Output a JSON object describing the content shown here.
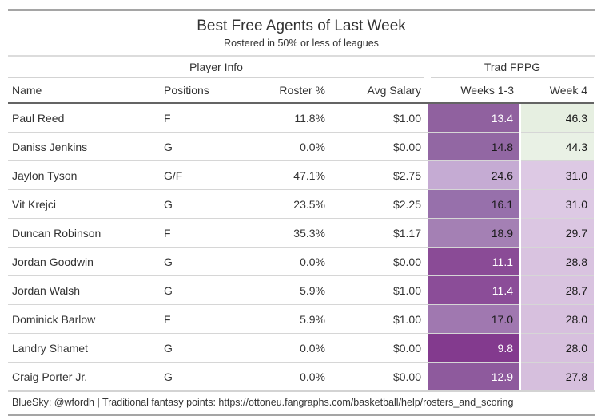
{
  "table": {
    "title": "Best Free Agents of Last Week",
    "subtitle": "Rostered in 50% or less of leagues",
    "spanners": {
      "player_info": "Player Info",
      "trad_fppg": "Trad FPPG"
    },
    "columns": {
      "name": "Name",
      "positions": "Positions",
      "roster_pct": "Roster %",
      "avg_salary": "Avg Salary",
      "weeks13": "Weeks 1-3",
      "week4": "Week 4"
    },
    "rows": [
      {
        "name": "Paul Reed",
        "positions": "F",
        "roster": "11.8%",
        "salary": "$1.00",
        "w13": "13.4",
        "w13_bg": "#90619f",
        "w13_fg": "#ffffff",
        "w4": "46.3",
        "w4_bg": "#e6efe1",
        "w4_fg": "#1a1a1a"
      },
      {
        "name": "Daniss Jenkins",
        "positions": "G",
        "roster": "0.0%",
        "salary": "$0.00",
        "w13": "14.8",
        "w13_bg": "#9267a3",
        "w13_fg": "#1a1a1a",
        "w4": "44.3",
        "w4_bg": "#e9f1e5",
        "w4_fg": "#1a1a1a"
      },
      {
        "name": "Jaylon Tyson",
        "positions": "G/F",
        "roster": "47.1%",
        "salary": "$2.75",
        "w13": "24.6",
        "w13_bg": "#c5abd3",
        "w13_fg": "#1a1a1a",
        "w4": "31.0",
        "w4_bg": "#ddc9e4",
        "w4_fg": "#1a1a1a"
      },
      {
        "name": "Vit Krejci",
        "positions": "G",
        "roster": "23.5%",
        "salary": "$2.25",
        "w13": "16.1",
        "w13_bg": "#9770ab",
        "w13_fg": "#1a1a1a",
        "w4": "31.0",
        "w4_bg": "#ddc9e4",
        "w4_fg": "#1a1a1a"
      },
      {
        "name": "Duncan Robinson",
        "positions": "F",
        "roster": "35.3%",
        "salary": "$1.17",
        "w13": "18.9",
        "w13_bg": "#a480b4",
        "w13_fg": "#1a1a1a",
        "w4": "29.7",
        "w4_bg": "#dbc6e2",
        "w4_fg": "#1a1a1a"
      },
      {
        "name": "Jordan Goodwin",
        "positions": "G",
        "roster": "0.0%",
        "salary": "$0.00",
        "w13": "11.1",
        "w13_bg": "#8a4b96",
        "w13_fg": "#ffffff",
        "w4": "28.8",
        "w4_bg": "#d9c3e0",
        "w4_fg": "#1a1a1a"
      },
      {
        "name": "Jordan Walsh",
        "positions": "G",
        "roster": "5.9%",
        "salary": "$1.00",
        "w13": "11.4",
        "w13_bg": "#8b4d98",
        "w13_fg": "#ffffff",
        "w4": "28.7",
        "w4_bg": "#d9c3e0",
        "w4_fg": "#1a1a1a"
      },
      {
        "name": "Dominick Barlow",
        "positions": "F",
        "roster": "5.9%",
        "salary": "$1.00",
        "w13": "17.0",
        "w13_bg": "#a078b0",
        "w13_fg": "#1a1a1a",
        "w4": "28.0",
        "w4_bg": "#d7c0de",
        "w4_fg": "#1a1a1a"
      },
      {
        "name": "Landry Shamet",
        "positions": "G",
        "roster": "0.0%",
        "salary": "$0.00",
        "w13": "9.8",
        "w13_bg": "#833a8e",
        "w13_fg": "#ffffff",
        "w4": "28.0",
        "w4_bg": "#d7c0de",
        "w4_fg": "#1a1a1a"
      },
      {
        "name": "Craig Porter Jr.",
        "positions": "G",
        "roster": "0.0%",
        "salary": "$0.00",
        "w13": "12.9",
        "w13_bg": "#8e5a9d",
        "w13_fg": "#ffffff",
        "w4": "27.8",
        "w4_bg": "#d6bfdd",
        "w4_fg": "#1a1a1a"
      }
    ],
    "source_note": "BlueSky: @wfordh | Traditional fantasy points: https://ottoneu.fangraphs.com/basketball/help/rosters_and_scoring"
  },
  "chart_data": {
    "type": "table",
    "title": "Best Free Agents of Last Week",
    "subtitle": "Rostered in 50% or less of leagues",
    "column_groups": [
      {
        "label": "Player Info",
        "span": 4
      },
      {
        "label": "Trad FPPG",
        "span": 2
      }
    ],
    "columns": [
      "Name",
      "Positions",
      "Roster %",
      "Avg Salary",
      "Weeks 1-3",
      "Week 4"
    ],
    "rows": [
      [
        "Paul Reed",
        "F",
        11.8,
        1.0,
        13.4,
        46.3
      ],
      [
        "Daniss Jenkins",
        "G",
        0.0,
        0.0,
        14.8,
        44.3
      ],
      [
        "Jaylon Tyson",
        "G/F",
        47.1,
        2.75,
        24.6,
        31.0
      ],
      [
        "Vit Krejci",
        "G",
        23.5,
        2.25,
        16.1,
        31.0
      ],
      [
        "Duncan Robinson",
        "F",
        35.3,
        1.17,
        18.9,
        29.7
      ],
      [
        "Jordan Goodwin",
        "G",
        0.0,
        0.0,
        11.1,
        28.8
      ],
      [
        "Jordan Walsh",
        "G",
        5.9,
        1.0,
        11.4,
        28.7
      ],
      [
        "Dominick Barlow",
        "F",
        5.9,
        1.0,
        17.0,
        28.0
      ],
      [
        "Landry Shamet",
        "G",
        0.0,
        0.0,
        9.8,
        28.0
      ],
      [
        "Craig Porter Jr.",
        "G",
        0.0,
        0.0,
        12.9,
        27.8
      ]
    ],
    "heatmap_columns": [
      "Weeks 1-3",
      "Week 4"
    ],
    "heatmap_palette": "purple-to-green diverging (low=dark purple, high=light green)",
    "source_note": "BlueSky: @wfordh | Traditional fantasy points: https://ottoneu.fangraphs.com/basketball/help/rosters_and_scoring"
  },
  "colors": {
    "outer_border": "#a5a5a5",
    "header_rule": "#646464",
    "row_divider": "#d6d6d6",
    "light_rule": "#d3d3d3",
    "text": "#333333"
  }
}
